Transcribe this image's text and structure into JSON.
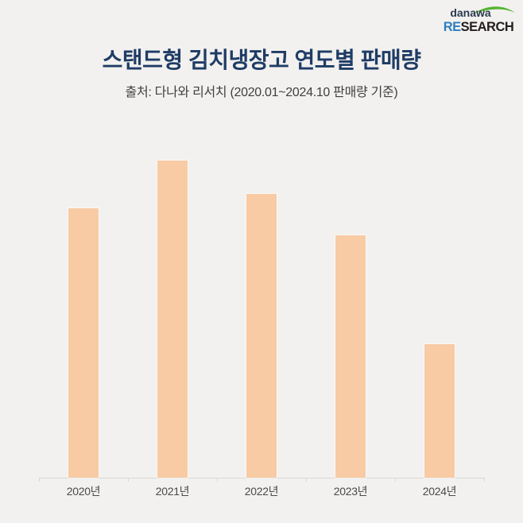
{
  "header": {
    "title": "스탠드형 김치냉장고 연도별 판매량",
    "subtitle": "출처: 다나와 리서치 (2020.01~2024.10 판매량 기준)"
  },
  "logo": {
    "brand": "danawa",
    "research_highlight": "RE",
    "research_rest": "SEARCH",
    "swoosh_color": "#55b432",
    "highlight_color": "#2e7fc1",
    "brand_color": "#2b3a4e",
    "rest_color": "#24201f"
  },
  "colors": {
    "background": "#f2f1ef",
    "bar": "#f8cba5",
    "axis": "#d9d8d5",
    "tick_label": "#4a4a4a",
    "title": "#1f3c66",
    "subtitle": "#3f3f3f"
  },
  "chart_data": {
    "type": "bar",
    "title": "스탠드형 김치냉장고 연도별 판매량",
    "subtitle": "출처: 다나와 리서치 (2020.01~2024.10 판매량 기준)",
    "categories": [
      "2020년",
      "2021년",
      "2022년",
      "2023년",
      "2024년"
    ],
    "values": [
      85,
      100,
      89.5,
      76.5,
      42
    ],
    "value_scale": "relative bar height, no numeric axis or data labels shown (2021 = 100)",
    "xlabel": "",
    "ylabel": "",
    "ylim": [
      0,
      100
    ],
    "grid": false,
    "legend": false,
    "bar_color": "#f8cba5"
  }
}
